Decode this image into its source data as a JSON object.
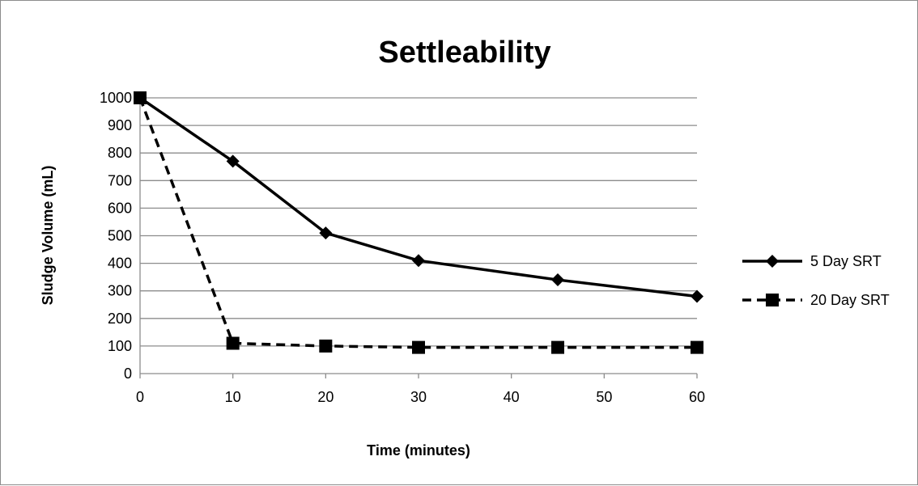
{
  "chart_data": {
    "type": "line",
    "title": "Settleability",
    "xlabel": "Time (minutes)",
    "ylabel": "Sludge Volume (mL)",
    "categories": [
      "0",
      "10",
      "20",
      "30",
      "45",
      "60"
    ],
    "xlim": [
      0,
      60
    ],
    "xticks": [
      0,
      10,
      20,
      30,
      40,
      50,
      60
    ],
    "ylim": [
      0,
      1000
    ],
    "yticks": [
      0,
      100,
      200,
      300,
      400,
      500,
      600,
      700,
      800,
      900,
      1000
    ],
    "grid": "horizontal",
    "legend_position": "right",
    "series": [
      {
        "name": "5 Day SRT",
        "x": [
          0,
          10,
          20,
          30,
          45,
          60
        ],
        "values": [
          1000,
          770,
          510,
          410,
          340,
          280
        ],
        "line_style": "solid",
        "marker": "diamond",
        "color": "#000000"
      },
      {
        "name": "20 Day SRT",
        "x": [
          0,
          10,
          20,
          30,
          45,
          60
        ],
        "values": [
          1000,
          110,
          100,
          95,
          95,
          95
        ],
        "line_style": "dashed",
        "marker": "square",
        "color": "#000000"
      }
    ]
  }
}
